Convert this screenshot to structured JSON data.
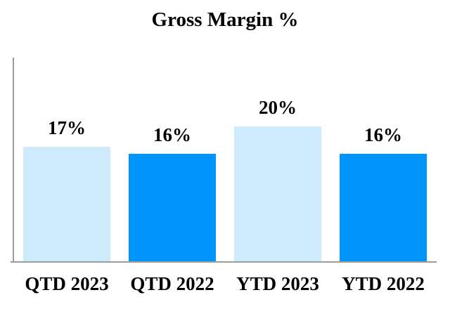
{
  "title": "Gross Margin %",
  "chart_data": {
    "type": "bar",
    "title": "Gross Margin %",
    "categories": [
      "QTD 2023",
      "QTD 2022",
      "YTD 2023",
      "YTD 2022"
    ],
    "values": [
      17,
      16,
      20,
      16
    ],
    "value_labels": [
      "17%",
      "16%",
      "20%",
      "16%"
    ],
    "xlabel": "",
    "ylabel": "",
    "ylim": [
      0,
      30
    ],
    "grid": false,
    "legend_position": "none",
    "bar_colors": [
      "#CDEBFB",
      "#0095FB",
      "#CDEBFB",
      "#0095FB"
    ],
    "colors": {
      "light_blue_2023_bars": "#CDEBFB",
      "dark_blue_2022_bars": "#0095FB",
      "axis": "#9B9B9B",
      "text": "#000000",
      "background": "#FFFFFF"
    }
  }
}
